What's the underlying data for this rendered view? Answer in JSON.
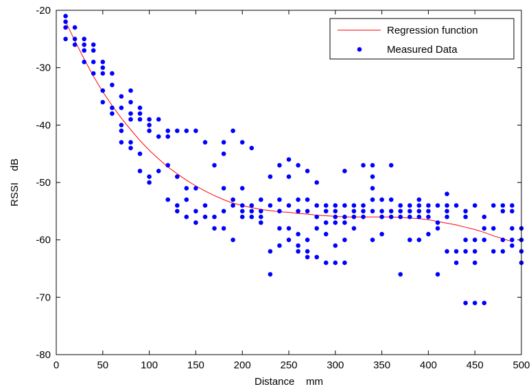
{
  "chart_data": {
    "type": "scatter",
    "title": "",
    "xlabel": "Distance    mm",
    "ylabel": "RSSI    dB",
    "xlim": [
      0,
      500
    ],
    "ylim": [
      -80,
      -20
    ],
    "xticks": [
      0,
      50,
      100,
      150,
      200,
      250,
      300,
      350,
      400,
      450,
      500
    ],
    "yticks": [
      -20,
      -30,
      -40,
      -50,
      -60,
      -70,
      -80
    ],
    "grid": false,
    "legend_position": "top-right",
    "series": [
      {
        "name": "Regression function",
        "kind": "line",
        "color": "#ff0000",
        "x": [
          10,
          20,
          30,
          40,
          50,
          60,
          70,
          80,
          90,
          100,
          110,
          120,
          130,
          140,
          150,
          160,
          170,
          180,
          190,
          200,
          210,
          220,
          230,
          240,
          250,
          260,
          270,
          280,
          290,
          300,
          310,
          320,
          330,
          340,
          350,
          360,
          370,
          380,
          390,
          400,
          410,
          420,
          430,
          440,
          450,
          460,
          470,
          480,
          490
        ],
        "y": [
          -22,
          -25.3,
          -28.5,
          -31.5,
          -34.2,
          -36.6,
          -38.8,
          -40.8,
          -42.7,
          -44.4,
          -45.9,
          -47.3,
          -48.5,
          -49.6,
          -50.6,
          -51.5,
          -52.3,
          -53.0,
          -53.6,
          -54.0,
          -54.4,
          -54.7,
          -54.9,
          -55.1,
          -55.2,
          -55.4,
          -55.5,
          -55.7,
          -55.8,
          -55.9,
          -56.0,
          -56.0,
          -56.0,
          -56.0,
          -56.0,
          -56.0,
          -56.1,
          -56.2,
          -56.3,
          -56.5,
          -56.8,
          -57.1,
          -57.4,
          -57.8,
          -58.2,
          -58.7,
          -59.3,
          -59.8,
          -60.3
        ]
      },
      {
        "name": "Measured Data",
        "kind": "scatter",
        "color": "#0000ff",
        "points": [
          [
            10,
            -21
          ],
          [
            10,
            -22
          ],
          [
            10,
            -23
          ],
          [
            10,
            -25
          ],
          [
            20,
            -23
          ],
          [
            20,
            -25
          ],
          [
            20,
            -26
          ],
          [
            30,
            -25
          ],
          [
            30,
            -26
          ],
          [
            30,
            -27
          ],
          [
            30,
            -29
          ],
          [
            40,
            -26
          ],
          [
            40,
            -27
          ],
          [
            40,
            -29
          ],
          [
            40,
            -31
          ],
          [
            50,
            -29
          ],
          [
            50,
            -30
          ],
          [
            50,
            -31
          ],
          [
            50,
            -34
          ],
          [
            50,
            -36
          ],
          [
            60,
            -31
          ],
          [
            60,
            -33
          ],
          [
            60,
            -37
          ],
          [
            60,
            -38
          ],
          [
            70,
            -35
          ],
          [
            70,
            -37
          ],
          [
            70,
            -40
          ],
          [
            70,
            -41
          ],
          [
            70,
            -43
          ],
          [
            80,
            -34
          ],
          [
            80,
            -36
          ],
          [
            80,
            -38
          ],
          [
            80,
            -39
          ],
          [
            80,
            -43
          ],
          [
            80,
            -44
          ],
          [
            90,
            -37
          ],
          [
            90,
            -38
          ],
          [
            90,
            -39
          ],
          [
            90,
            -45
          ],
          [
            90,
            -48
          ],
          [
            100,
            -39
          ],
          [
            100,
            -40
          ],
          [
            100,
            -41
          ],
          [
            100,
            -49
          ],
          [
            100,
            -50
          ],
          [
            110,
            -39
          ],
          [
            110,
            -42
          ],
          [
            110,
            -48
          ],
          [
            120,
            -41
          ],
          [
            120,
            -42
          ],
          [
            120,
            -47
          ],
          [
            120,
            -53
          ],
          [
            130,
            -41
          ],
          [
            130,
            -49
          ],
          [
            130,
            -54
          ],
          [
            130,
            -55
          ],
          [
            140,
            -41
          ],
          [
            140,
            -51
          ],
          [
            140,
            -53
          ],
          [
            140,
            -56
          ],
          [
            150,
            -41
          ],
          [
            150,
            -51
          ],
          [
            150,
            -55
          ],
          [
            150,
            -57
          ],
          [
            160,
            -43
          ],
          [
            160,
            -54
          ],
          [
            160,
            -56
          ],
          [
            170,
            -47
          ],
          [
            170,
            -56
          ],
          [
            170,
            -58
          ],
          [
            180,
            -43
          ],
          [
            180,
            -45
          ],
          [
            180,
            -51
          ],
          [
            180,
            -55
          ],
          [
            180,
            -58
          ],
          [
            190,
            -41
          ],
          [
            190,
            -53
          ],
          [
            190,
            -54
          ],
          [
            190,
            -60
          ],
          [
            200,
            -43
          ],
          [
            200,
            -51
          ],
          [
            200,
            -54
          ],
          [
            200,
            -55
          ],
          [
            200,
            -56
          ],
          [
            210,
            -44
          ],
          [
            210,
            -54
          ],
          [
            210,
            -55
          ],
          [
            210,
            -56
          ],
          [
            220,
            -53
          ],
          [
            220,
            -55
          ],
          [
            220,
            -56
          ],
          [
            220,
            -57
          ],
          [
            230,
            -49
          ],
          [
            230,
            -54
          ],
          [
            230,
            -62
          ],
          [
            230,
            -66
          ],
          [
            240,
            -47
          ],
          [
            240,
            -53
          ],
          [
            240,
            -55
          ],
          [
            240,
            -58
          ],
          [
            240,
            -61
          ],
          [
            250,
            -46
          ],
          [
            250,
            -49
          ],
          [
            250,
            -54
          ],
          [
            250,
            -58
          ],
          [
            250,
            -60
          ],
          [
            260,
            -47
          ],
          [
            260,
            -53
          ],
          [
            260,
            -55
          ],
          [
            260,
            -59
          ],
          [
            260,
            -61
          ],
          [
            260,
            -62
          ],
          [
            270,
            -48
          ],
          [
            270,
            -53
          ],
          [
            270,
            -55
          ],
          [
            270,
            -60
          ],
          [
            270,
            -62
          ],
          [
            270,
            -63
          ],
          [
            280,
            -50
          ],
          [
            280,
            -54
          ],
          [
            280,
            -56
          ],
          [
            280,
            -58
          ],
          [
            280,
            -63
          ],
          [
            290,
            -54
          ],
          [
            290,
            -55
          ],
          [
            290,
            -57
          ],
          [
            290,
            -59
          ],
          [
            290,
            -64
          ],
          [
            300,
            -54
          ],
          [
            300,
            -55
          ],
          [
            300,
            -56
          ],
          [
            300,
            -57
          ],
          [
            300,
            -61
          ],
          [
            300,
            -64
          ],
          [
            310,
            -48
          ],
          [
            310,
            -54
          ],
          [
            310,
            -56
          ],
          [
            310,
            -57
          ],
          [
            310,
            -60
          ],
          [
            310,
            -64
          ],
          [
            320,
            -54
          ],
          [
            320,
            -55
          ],
          [
            320,
            -56
          ],
          [
            320,
            -58
          ],
          [
            330,
            -47
          ],
          [
            330,
            -54
          ],
          [
            330,
            -55
          ],
          [
            330,
            -56
          ],
          [
            340,
            -47
          ],
          [
            340,
            -49
          ],
          [
            340,
            -51
          ],
          [
            340,
            -53
          ],
          [
            340,
            -55
          ],
          [
            340,
            -60
          ],
          [
            350,
            -53
          ],
          [
            350,
            -55
          ],
          [
            350,
            -56
          ],
          [
            350,
            -59
          ],
          [
            360,
            -47
          ],
          [
            360,
            -53
          ],
          [
            360,
            -55
          ],
          [
            360,
            -56
          ],
          [
            370,
            -54
          ],
          [
            370,
            -55
          ],
          [
            370,
            -56
          ],
          [
            370,
            -66
          ],
          [
            380,
            -54
          ],
          [
            380,
            -55
          ],
          [
            380,
            -56
          ],
          [
            380,
            -60
          ],
          [
            390,
            -53
          ],
          [
            390,
            -54
          ],
          [
            390,
            -55
          ],
          [
            390,
            -56
          ],
          [
            390,
            -60
          ],
          [
            400,
            -54
          ],
          [
            400,
            -55
          ],
          [
            400,
            -56
          ],
          [
            400,
            -59
          ],
          [
            410,
            -54
          ],
          [
            410,
            -57
          ],
          [
            410,
            -58
          ],
          [
            410,
            -66
          ],
          [
            420,
            -52
          ],
          [
            420,
            -54
          ],
          [
            420,
            -55
          ],
          [
            420,
            -56
          ],
          [
            420,
            -62
          ],
          [
            430,
            -54
          ],
          [
            430,
            -62
          ],
          [
            430,
            -64
          ],
          [
            440,
            -55
          ],
          [
            440,
            -56
          ],
          [
            440,
            -60
          ],
          [
            440,
            -62
          ],
          [
            440,
            -71
          ],
          [
            450,
            -54
          ],
          [
            450,
            -60
          ],
          [
            450,
            -62
          ],
          [
            450,
            -64
          ],
          [
            450,
            -71
          ],
          [
            460,
            -56
          ],
          [
            460,
            -58
          ],
          [
            460,
            -60
          ],
          [
            460,
            -71
          ],
          [
            470,
            -54
          ],
          [
            470,
            -58
          ],
          [
            470,
            -62
          ],
          [
            480,
            -54
          ],
          [
            480,
            -55
          ],
          [
            480,
            -60
          ],
          [
            480,
            -62
          ],
          [
            490,
            -54
          ],
          [
            490,
            -55
          ],
          [
            490,
            -58
          ],
          [
            490,
            -60
          ],
          [
            490,
            -61
          ],
          [
            500,
            -58
          ],
          [
            500,
            -60
          ],
          [
            500,
            -62
          ],
          [
            500,
            -64
          ]
        ]
      }
    ]
  }
}
